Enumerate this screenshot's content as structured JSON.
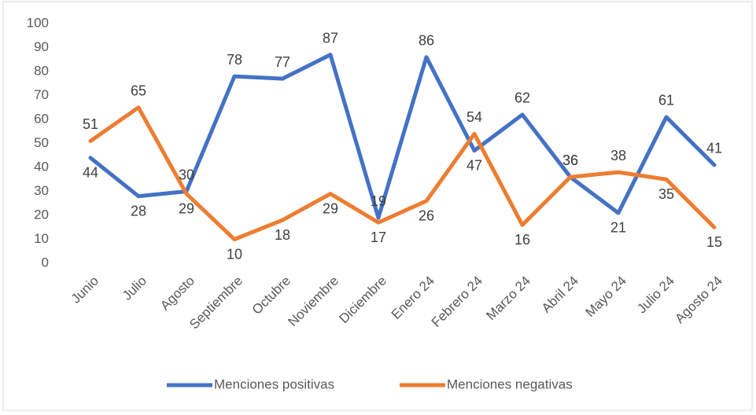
{
  "chart_data": {
    "type": "line",
    "categories": [
      "Junio",
      "Julio",
      "Agosto",
      "Septiembre",
      "Octubre",
      "Noviembre",
      "Diciembre",
      "Enero 24",
      "Febrero 24",
      "Marzo 24",
      "Abril 24",
      "Mayo 24",
      "Julio 24",
      "Agosto 24"
    ],
    "series": [
      {
        "name": "Menciones positivas",
        "color": "#4472c4",
        "values": [
          44,
          28,
          30,
          78,
          77,
          87,
          19,
          86,
          47,
          62,
          36,
          21,
          61,
          41
        ]
      },
      {
        "name": "Menciones negativas",
        "color": "#ed7d31",
        "values": [
          51,
          65,
          29,
          10,
          18,
          29,
          17,
          26,
          54,
          16,
          36,
          38,
          35,
          15
        ]
      }
    ],
    "ylim": [
      0,
      100
    ],
    "yticks": [
      0,
      10,
      20,
      30,
      40,
      50,
      60,
      70,
      80,
      90,
      100
    ],
    "grid": false,
    "legend": "bottom"
  }
}
